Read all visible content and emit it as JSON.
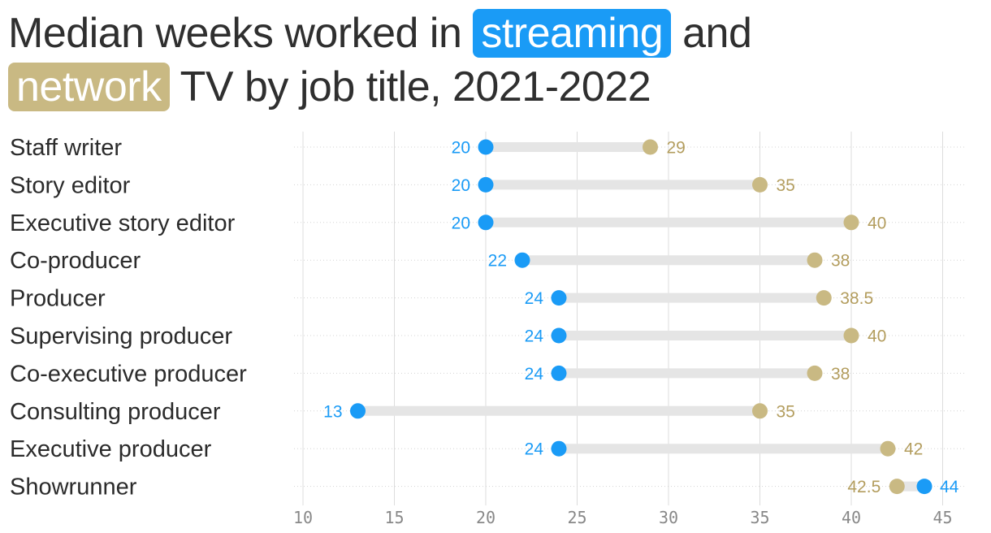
{
  "title": {
    "part1": "Median weeks worked in",
    "highlight_streaming": "streaming",
    "part2": "and",
    "highlight_network": "network",
    "part3": "TV by job title, 2021-2022"
  },
  "colors": {
    "streaming": "#1a9bf6",
    "network": "#c9b983",
    "network_label": "#b39d5e",
    "connector": "#e5e5e5",
    "grid": "#dcdcdc",
    "row_guide": "#d4d4d4"
  },
  "chart_data": {
    "type": "dumbbell",
    "title": "Median weeks worked in streaming and network TV by job title, 2021-2022",
    "xlim": [
      9,
      46
    ],
    "x_ticks": [
      10,
      15,
      20,
      25,
      30,
      35,
      40,
      45
    ],
    "categories": [
      "Staff writer",
      "Story editor",
      "Executive story editor",
      "Co-producer",
      "Producer",
      "Supervising producer",
      "Co-executive producer",
      "Consulting producer",
      "Executive producer",
      "Showrunner"
    ],
    "series": [
      {
        "name": "streaming",
        "values": [
          20,
          20,
          20,
          22,
          24,
          24,
          24,
          13,
          24,
          44
        ]
      },
      {
        "name": "network",
        "values": [
          29,
          35,
          40,
          38,
          38.5,
          40,
          38,
          35,
          42,
          42.5
        ]
      }
    ],
    "grid": "vertical",
    "legend": "title highlights"
  }
}
